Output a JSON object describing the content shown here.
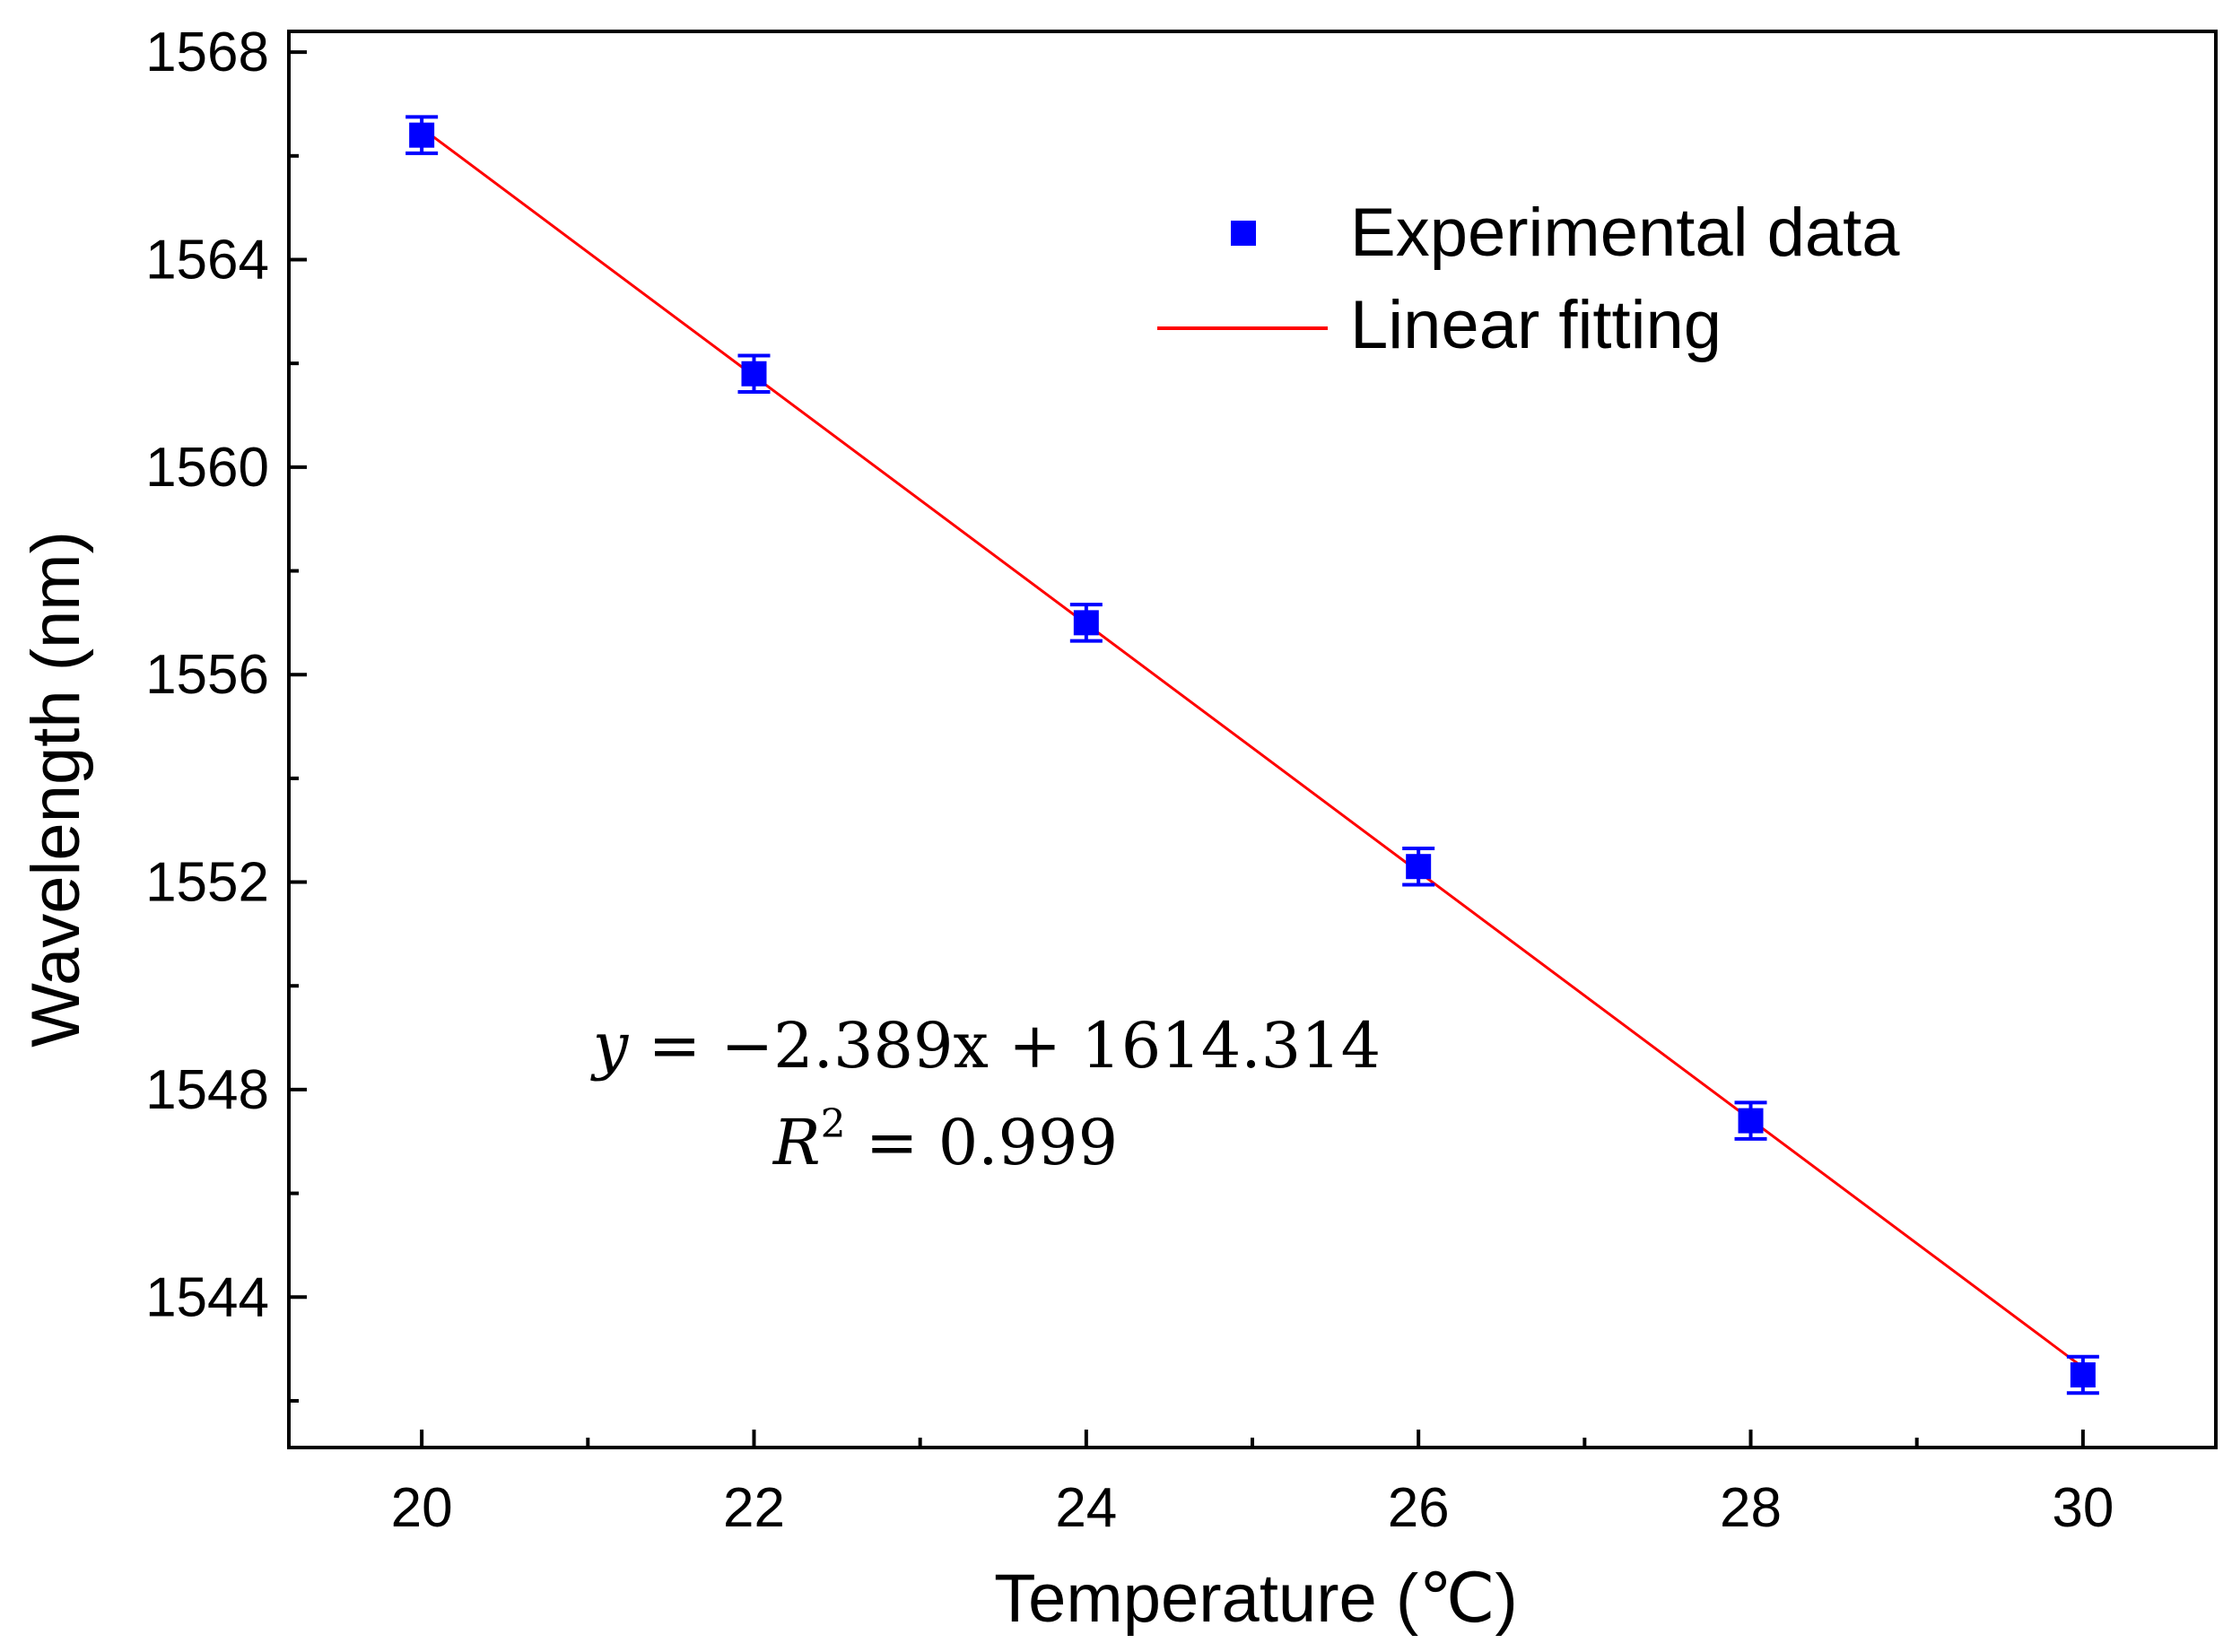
{
  "chart_data": {
    "type": "scatter",
    "xlabel": "Temperature (℃)",
    "ylabel": "Wavelength (nm)",
    "xlim": [
      19.2,
      30.8
    ],
    "ylim": [
      1541.1,
      1568.4
    ],
    "x_ticks": [
      20,
      22,
      24,
      26,
      28,
      30
    ],
    "x_tick_labels": [
      "20",
      "22",
      "24",
      "26",
      "28",
      "30"
    ],
    "x_minor_ticks": [
      21,
      23,
      25,
      27,
      29
    ],
    "y_ticks": [
      1544,
      1548,
      1552,
      1556,
      1560,
      1564,
      1568
    ],
    "y_tick_labels": [
      "1544",
      "1548",
      "1552",
      "1556",
      "1560",
      "1564",
      "1568"
    ],
    "y_minor_ticks": [
      1542,
      1546,
      1550,
      1554,
      1558,
      1562,
      1566
    ],
    "grid": false,
    "legend_position": "top-right",
    "series": [
      {
        "name": "Experimental data",
        "kind": "scatter",
        "color": "#0000ff",
        "x": [
          20,
          22,
          24,
          26,
          28,
          30
        ],
        "y": [
          1566.4,
          1561.8,
          1557.0,
          1552.3,
          1547.4,
          1542.5
        ],
        "error": [
          0.35,
          0.35,
          0.35,
          0.35,
          0.35,
          0.35
        ]
      },
      {
        "name": "Linear fitting",
        "kind": "line",
        "color": "#ff0000",
        "slope": -2.389,
        "intercept": 1614.314,
        "x": [
          20,
          30
        ]
      }
    ],
    "annotations": {
      "equation_lhs": "y",
      "equation_rest": " = −2.389x + 1614.314",
      "r2_symbol": "R",
      "r2_power": "2",
      "r2_rest": " = 0.999"
    }
  }
}
